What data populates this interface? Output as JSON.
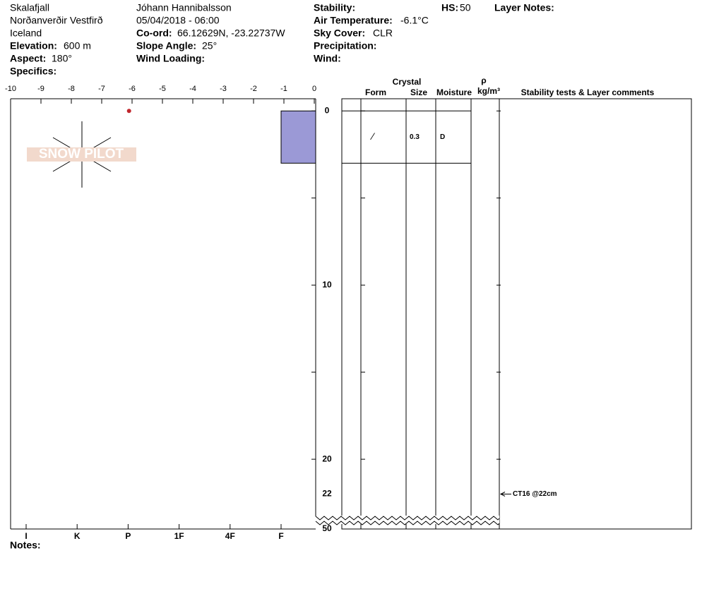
{
  "header": {
    "location": "Skalafjall",
    "region": "Norðanverðir Vestfirð",
    "country": "Iceland",
    "elevation_label": "Elevation:",
    "elevation": "600 m",
    "aspect_label": "Aspect:",
    "aspect": "180°",
    "specifics_label": "Specifics:",
    "observer": "Jóhann Hannibalsson",
    "datetime": "05/04/2018 - 06:00",
    "coord_label": "Co-ord:",
    "coord": "66.12629N, -23.22737W",
    "slope_label": "Slope Angle:",
    "slope": "25°",
    "wind_loading_label": "Wind Loading:",
    "stability_label": "Stability:",
    "air_temp_label": "Air Temperature:",
    "air_temp": "-6.1°C",
    "sky_label": "Sky Cover:",
    "sky": "CLR",
    "precip_label": "Precipitation:",
    "wind_label": "Wind:",
    "hs_label": "HS:",
    "hs": "50",
    "layer_notes_label": "Layer Notes:",
    "notes_label": "Notes:",
    "logo": "SNOW PILOT"
  },
  "table_headers": {
    "crystal": "Crystal",
    "form": "Form",
    "size": "Size",
    "moisture": "Moisture",
    "rho": "ρ",
    "density_unit": "kg/m³",
    "comments": "Stability tests & Layer comments"
  },
  "chart_data": {
    "type": "snow_profile",
    "xlim": [
      -10,
      0
    ],
    "xticks": [
      -10,
      -9,
      -8,
      -7,
      -6,
      -5,
      -4,
      -3,
      -2,
      -1,
      0
    ],
    "hardness_categories": [
      "I",
      "K",
      "P",
      "1F",
      "4F",
      "F"
    ],
    "ylim": [
      -0.7,
      23.6
    ],
    "yticks": [
      0,
      10,
      20
    ],
    "minor_yticks": [
      5,
      15
    ],
    "temperature_color": "#c0272d",
    "temperatures": [
      {
        "depth": 0,
        "temp": -6.1
      }
    ],
    "layers": [
      {
        "top": 0,
        "bottom": 3,
        "hardness": "F",
        "form": "⁄",
        "size": "0.3",
        "moisture": "D",
        "color": "#9b99d6"
      }
    ],
    "stability_tests": [
      {
        "depth": 22,
        "label": "CT16 @22cm"
      }
    ]
  }
}
